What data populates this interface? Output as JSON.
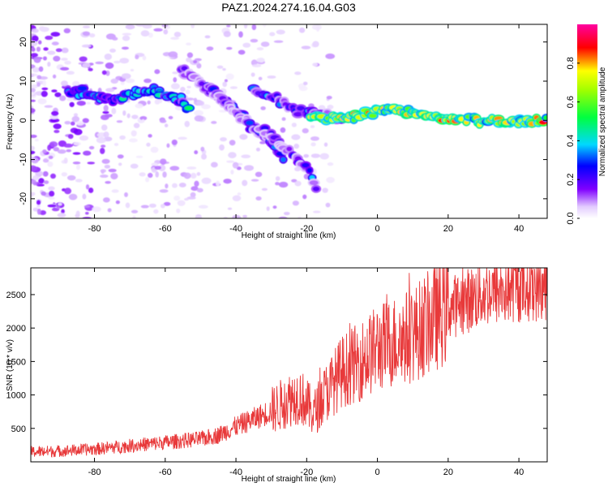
{
  "title": "PAZ1.2024.274.16.04.G03",
  "chart_data": [
    {
      "type": "heatmap",
      "xlabel": "Height of straight line (km)",
      "ylabel": "Frequency (Hz)",
      "xlim": [
        -98,
        48
      ],
      "ylim": [
        -25,
        24.5
      ],
      "xticks": [
        -80,
        -60,
        -40,
        -20,
        0,
        20,
        40
      ],
      "yticks": [
        -20,
        -10,
        0,
        10,
        20
      ],
      "colorbar": {
        "label": "Normalized spectral amplitude",
        "range": [
          0,
          1
        ],
        "ticks": [
          "0.0",
          "0.2",
          "0.4",
          "0.6",
          "0.8"
        ],
        "tick_values": [
          0,
          0.2,
          0.4,
          0.6,
          0.8
        ],
        "colormap": "rainbow (white-lavender, purple, blue, cyan, green, yellow, red, magenta)"
      },
      "ridges": [
        {
          "points": [
            [
              -87,
              8
            ],
            [
              -80,
              6
            ],
            [
              -74,
              5
            ],
            [
              -66,
              8
            ],
            [
              -58,
              6
            ],
            [
              -53,
              3
            ]
          ],
          "amplitude": 0.35
        },
        {
          "points": [
            [
              -55,
              13
            ],
            [
              -45,
              6
            ],
            [
              -38,
              1
            ],
            [
              -30,
              -6
            ],
            [
              -26,
              -10
            ]
          ],
          "amplitude": 0.2
        },
        {
          "points": [
            [
              -48,
              9
            ],
            [
              -42,
              4
            ],
            [
              -36,
              -1
            ],
            [
              -28,
              -5
            ],
            [
              -20,
              -12
            ],
            [
              -17,
              -18
            ]
          ],
          "amplitude": 0.15
        },
        {
          "points": [
            [
              -35,
              8
            ],
            [
              -26,
              4
            ],
            [
              -20,
              2
            ],
            [
              -14,
              1
            ],
            [
              -10,
              0.5
            ]
          ],
          "amplitude": 0.25
        },
        {
          "points": [
            [
              -19,
              1
            ],
            [
              -10,
              0.5
            ],
            [
              -4,
              1.5
            ],
            [
              0,
              2.5
            ],
            [
              5,
              3
            ],
            [
              8,
              2
            ],
            [
              14,
              1
            ],
            [
              20,
              0.5
            ],
            [
              30,
              0
            ],
            [
              48,
              0
            ]
          ],
          "amplitude": 0.7
        }
      ]
    },
    {
      "type": "line",
      "xlabel": "Height of straight line (km)",
      "ylabel": "SNR (10 * v/v)",
      "xlim": [
        -98,
        48
      ],
      "ylim": [
        0,
        2900
      ],
      "xticks": [
        -80,
        -60,
        -40,
        -20,
        0,
        20,
        40
      ],
      "yticks": [
        500,
        1000,
        1500,
        2000,
        2500
      ],
      "color": "#e8393a",
      "series": [
        {
          "x": [
            -98,
            -90,
            -80,
            -70,
            -60,
            -50,
            -45,
            -40,
            -35,
            -30,
            -25,
            -22,
            -18,
            -15,
            -10,
            -5,
            0,
            5,
            10,
            15,
            20,
            25,
            30,
            35,
            40,
            45,
            48
          ],
          "values": [
            150,
            160,
            190,
            240,
            290,
            340,
            400,
            530,
            640,
            760,
            930,
            1000,
            720,
            1000,
            1350,
            1500,
            1700,
            1800,
            1900,
            2100,
            2300,
            2400,
            2520,
            2560,
            2600,
            2620,
            2630
          ]
        }
      ]
    }
  ]
}
